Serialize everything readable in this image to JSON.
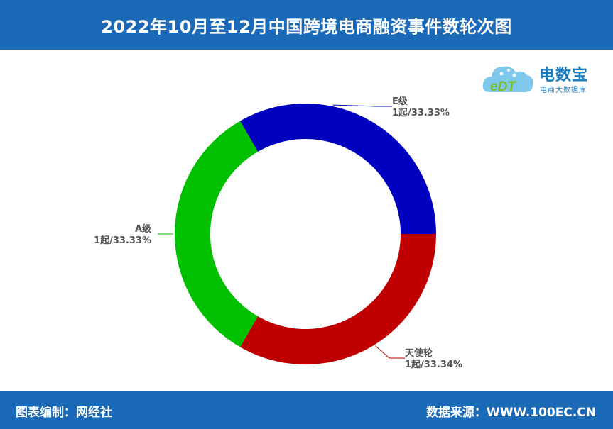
{
  "header": {
    "title": "2022年10月至12月中国跨境电商融资事件数轮次图"
  },
  "logo": {
    "main": "电数宝",
    "sub": "电商大数据库",
    "mark": "eDT"
  },
  "footer": {
    "left": "图表编制：网经社",
    "right": "数据来源：WWW.100EC.CN"
  },
  "chart_data": {
    "type": "pie",
    "donut": true,
    "legend": "none",
    "slices": [
      {
        "name": "E级",
        "value": 1,
        "label": "1起/33.33%",
        "color": "#0000c0"
      },
      {
        "name": "天使轮",
        "value": 1,
        "label": "1起/33.34%",
        "color": "#c00000"
      },
      {
        "name": "A级",
        "value": 1,
        "label": "1起/33.33%",
        "color": "#00c000"
      }
    ]
  }
}
